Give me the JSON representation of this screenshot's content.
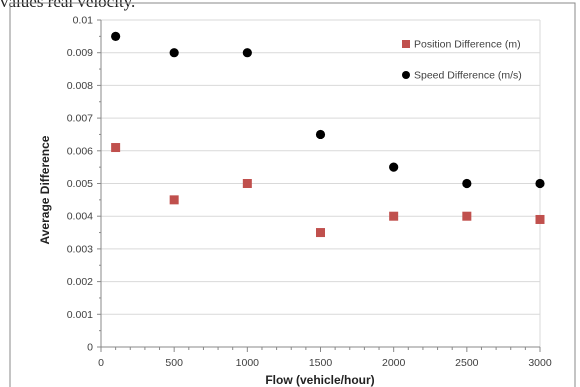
{
  "caption": "values real velocity.",
  "chart_data": {
    "type": "scatter",
    "title": "",
    "xlabel": "Flow (vehicle/hour)",
    "ylabel": "Average Difference",
    "xlim": [
      0,
      3000
    ],
    "ylim": [
      0,
      0.01
    ],
    "xticks": [
      "0",
      "500",
      "1000",
      "1500",
      "2000",
      "2500",
      "3000"
    ],
    "yticks": [
      "0",
      "0.001",
      "0.002",
      "0.003",
      "0.004",
      "0.005",
      "0.006",
      "0.007",
      "0.008",
      "0.009",
      "0.01"
    ],
    "grid": "horizontal",
    "legend_position": "top-right",
    "series": [
      {
        "name": "Position Difference (m)",
        "marker": "square",
        "color": "#c0504d",
        "x": [
          100,
          500,
          1000,
          1500,
          2000,
          2500,
          3000
        ],
        "y": [
          0.0061,
          0.0045,
          0.005,
          0.0035,
          0.004,
          0.004,
          0.0039
        ]
      },
      {
        "name": "Speed Difference (m/s)",
        "marker": "circle",
        "color": "#000000",
        "x": [
          100,
          500,
          1000,
          1500,
          2000,
          2500,
          3000
        ],
        "y": [
          0.0095,
          0.009,
          0.009,
          0.0065,
          0.0055,
          0.005,
          0.005
        ]
      }
    ]
  }
}
